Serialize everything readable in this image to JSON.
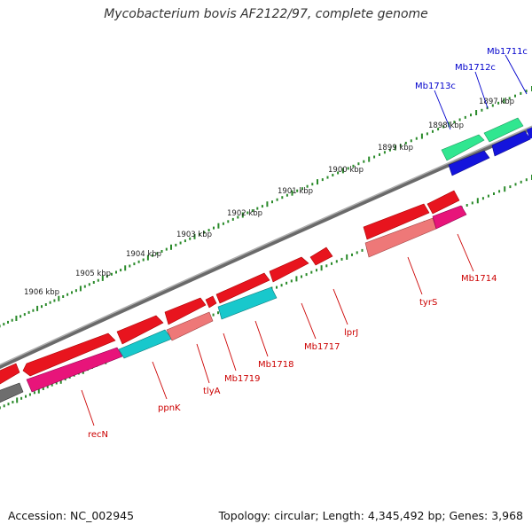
{
  "title": "Mycobacterium bovis AF2122/97, complete genome",
  "footer": {
    "accession": "Accession: NC_002945",
    "stats": "Topology: circular; Length: 4,345,492 bp; Genes: 3,968"
  },
  "colors": {
    "backbone": "#8a8a8a",
    "ruler": "#2a8a2a",
    "red_gene": "#e8141e",
    "pink_gene": "#e8147a",
    "salmon_gene": "#ee7878",
    "cyan_gene": "#18c8cc",
    "green_gene": "#30e690",
    "blue_gene": "#1414dc",
    "grey_gene": "#6e6e6e",
    "red_label": "#cc0000",
    "blue_label": "#0000cc"
  },
  "ruler": {
    "labels": [
      "1897 kbp",
      "1898 kbp",
      "1899 kbp",
      "1900 kbp",
      "1901 kbp",
      "1902 kbp",
      "1903 kbp",
      "1904 kbp",
      "1905 kbp",
      "1906 kbp"
    ]
  },
  "genes": {
    "labels_lower": [
      "recN",
      "ppnK",
      "tlyA",
      "Mb1719",
      "Mb1718",
      "Mb1717",
      "lprJ",
      "tyrS",
      "Mb1714"
    ],
    "labels_upper": [
      "Mb1713c",
      "Mb1712c",
      "Mb1711c"
    ]
  }
}
